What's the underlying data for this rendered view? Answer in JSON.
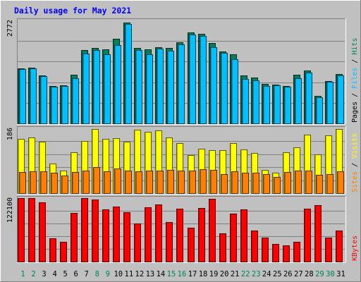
{
  "chart_data": {
    "type": "bar",
    "title": "Daily usage for May 2021",
    "categories": [
      "1",
      "2",
      "3",
      "4",
      "5",
      "6",
      "7",
      "8",
      "9",
      "10",
      "11",
      "12",
      "13",
      "14",
      "15",
      "16",
      "17",
      "18",
      "19",
      "20",
      "21",
      "22",
      "23",
      "24",
      "25",
      "26",
      "27",
      "28",
      "29",
      "30",
      "31"
    ],
    "weekend_days": [
      "1",
      "2",
      "8",
      "9",
      "15",
      "16",
      "22",
      "23",
      "29",
      "30"
    ],
    "panels": [
      {
        "name": "hits-files-pages",
        "ymax": 2772,
        "tick_label": "2772",
        "side_labels": [
          "Pages",
          "/",
          "Files",
          "/",
          "Hits"
        ],
        "series": [
          {
            "name": "Hits",
            "color": "#00805c",
            "values": [
              1490,
              1500,
              1300,
              1000,
              1020,
              1310,
              1980,
              2030,
              1990,
              2280,
              2720,
              2040,
              1990,
              2060,
              2040,
              2190,
              2440,
              2420,
              2170,
              1930,
              1860,
              1300,
              1240,
              1060,
              1050,
              1010,
              1310,
              1420,
              740,
              1130,
              1330
            ]
          },
          {
            "name": "Files",
            "color": "#00c0ff",
            "values": [
              1470,
              1480,
              1280,
              980,
              1000,
              1220,
              1880,
              1970,
              1870,
              2110,
              2680,
              1980,
              1870,
              2010,
              1960,
              2120,
              2390,
              2350,
              2060,
              1890,
              1730,
              1200,
              1150,
              1000,
              1030,
              980,
              1210,
              1370,
              700,
              1120,
              1300
            ]
          }
        ]
      },
      {
        "name": "visits-sites",
        "ymax": 186,
        "tick_label": "186",
        "side_labels": [
          "Sites",
          "/",
          "Visits"
        ],
        "series": [
          {
            "name": "Visits",
            "color": "#ffff00",
            "values": [
              155,
              159,
              148,
              84,
              65,
              117,
              150,
              183,
              155,
              157,
              147,
              182,
              176,
              179,
              160,
              144,
              109,
              128,
              123,
              123,
              143,
              126,
              116,
              67,
              59,
              118,
              131,
              167,
              111,
              165,
              184
            ]
          },
          {
            "name": "Sites",
            "color": "#ff8000",
            "values": [
              60,
              62,
              63,
              58,
              50,
              60,
              64,
              74,
              62,
              70,
              65,
              63,
              64,
              64,
              66,
              64,
              64,
              68,
              66,
              55,
              62,
              58,
              58,
              55,
              46,
              60,
              64,
              65,
              52,
              54,
              63
            ]
          }
        ]
      },
      {
        "name": "kbytes",
        "ymax": 122100,
        "tick_label": "122100",
        "side_labels": [
          "KBytes"
        ],
        "series": [
          {
            "name": "KBytes",
            "color": "#ff0000",
            "values": [
              121900,
              121900,
              114000,
              44900,
              38100,
              93100,
              122100,
              118800,
              100200,
              105400,
              94700,
              73700,
              105100,
              109900,
              75300,
              102300,
              64700,
              103000,
              120600,
              54000,
              92700,
              99800,
              60000,
              46500,
              34200,
              31100,
              38500,
              101300,
              107900,
              45700,
              60100
            ]
          }
        ]
      }
    ],
    "colors": {
      "background": "#c0c0c0",
      "plot_background": "#c0c0c0",
      "title": "#0000ff",
      "axis_label": "#0000ff",
      "weekend_label": "#00805c",
      "grid": "#808080"
    }
  }
}
